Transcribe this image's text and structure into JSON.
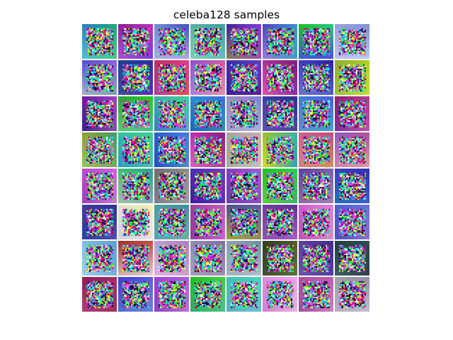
{
  "figure": {
    "title": "celeba128 samples"
  },
  "grid": {
    "rows": 8,
    "cols": 8,
    "tiles": [
      {
        "tl": "#2a7fc9",
        "tr": "#1fa37a",
        "bl": "#4fbfd8",
        "br": "#3fd07a"
      },
      {
        "tl": "#8a1f9a",
        "tr": "#c02fb8",
        "bl": "#b04fd0",
        "br": "#7a3fe0"
      },
      {
        "tl": "#6f8fd8",
        "tr": "#3f4fc0",
        "bl": "#9fb0e0",
        "br": "#b0a0f0"
      },
      {
        "tl": "#5fb0a0",
        "tr": "#3fa09f",
        "bl": "#7fd0b0",
        "br": "#5fc0c0"
      },
      {
        "tl": "#3f1fa0",
        "tr": "#7f3fd0",
        "bl": "#8a7f4f",
        "br": "#9f4fb0"
      },
      {
        "tl": "#4f3fc0",
        "tr": "#3f8fd0",
        "bl": "#8f7fe0",
        "br": "#3fa0c0"
      },
      {
        "tl": "#1fc01f",
        "tr": "#1fd07f",
        "bl": "#3f5fd0",
        "br": "#4f4fe0"
      },
      {
        "tl": "#9fa0e0",
        "tr": "#7f8fd0",
        "bl": "#c0c0f0",
        "br": "#b0d0f0"
      },
      {
        "tl": "#4f4fd0",
        "tr": "#8f5fe0",
        "bl": "#a0b0d0",
        "br": "#7fa0b0"
      },
      {
        "tl": "#1f3f8f",
        "tr": "#2f2f9f",
        "bl": "#3f4fa0",
        "br": "#5f2fbf"
      },
      {
        "tl": "#c02f5f",
        "tr": "#e03f8f",
        "bl": "#b03fa0",
        "br": "#e04f4f"
      },
      {
        "tl": "#8f4fd0",
        "tr": "#d05fa0",
        "bl": "#b07fe0",
        "br": "#e08fb0"
      },
      {
        "tl": "#3f2fb0",
        "tr": "#5f3fc0",
        "bl": "#3f1f9f",
        "br": "#5f1fa0"
      },
      {
        "tl": "#b02f9f",
        "tr": "#7f1f7f",
        "bl": "#e04fb0",
        "br": "#8f2fa0"
      },
      {
        "tl": "#3f3fc0",
        "tr": "#2f1f9f",
        "bl": "#6f6fd0",
        "br": "#4f5fd0"
      },
      {
        "tl": "#8fb02f",
        "tr": "#b0d01f",
        "bl": "#9fc03f",
        "br": "#c0e02f"
      },
      {
        "tl": "#6f1fa0",
        "tr": "#9f3fc0",
        "bl": "#3f1f8f",
        "br": "#8f4fb0"
      },
      {
        "tl": "#2fa03f",
        "tr": "#1fd01f",
        "bl": "#4fd06f",
        "br": "#3fc08f"
      },
      {
        "tl": "#3fb0a0",
        "tr": "#3fd0a0",
        "bl": "#2f7fc0",
        "br": "#5fa0d0"
      },
      {
        "tl": "#2f8fd0",
        "tr": "#3f6fe0",
        "bl": "#1f5fc0",
        "br": "#2f8fb0"
      },
      {
        "tl": "#9f8fc0",
        "tr": "#7f7fd0",
        "bl": "#a0a0d0",
        "br": "#b0b0e0"
      },
      {
        "tl": "#3f3fa0",
        "tr": "#2f2f8f",
        "bl": "#5f4fb0",
        "br": "#4f3fa0"
      },
      {
        "tl": "#3f7fd0",
        "tr": "#4f5fe0",
        "bl": "#5f8fd0",
        "br": "#3fa0d0"
      },
      {
        "tl": "#8f1f6f",
        "tr": "#b03f8f",
        "bl": "#7f2f9f",
        "br": "#c04fb0"
      },
      {
        "tl": "#8fa03f",
        "tr": "#3fa05f",
        "bl": "#9fc04f",
        "br": "#7fa06f"
      },
      {
        "tl": "#2fc0a0",
        "tr": "#3fd08f",
        "bl": "#1fa0c0",
        "br": "#4fc0b0"
      },
      {
        "tl": "#2f5fd0",
        "tr": "#3f7fe0",
        "bl": "#1f4fc0",
        "br": "#4f8fd0"
      },
      {
        "tl": "#c02fb0",
        "tr": "#8f1f7f",
        "bl": "#e05fc0",
        "br": "#b03f9f"
      },
      {
        "tl": "#b0a0a0",
        "tr": "#c0b0b0",
        "bl": "#a0b090",
        "br": "#d0c0c0"
      },
      {
        "tl": "#9fc02f",
        "tr": "#3fb0a0",
        "bl": "#d0e01f",
        "br": "#2fa0b0"
      },
      {
        "tl": "#d05f8f",
        "tr": "#c04f7f",
        "bl": "#e07f7f",
        "br": "#d08f5f"
      },
      {
        "tl": "#8f5fc0",
        "tr": "#b04f9f",
        "bl": "#d07fb0",
        "br": "#e09f9f"
      },
      {
        "tl": "#b04fd0",
        "tr": "#d05fe0",
        "bl": "#a03fc0",
        "br": "#c07fd0"
      },
      {
        "tl": "#3fc06f",
        "tr": "#2fa08f",
        "bl": "#9fc0a0",
        "br": "#7fb0b0"
      },
      {
        "tl": "#6f6f6f",
        "tr": "#8f8f8f",
        "bl": "#7f7f8f",
        "br": "#9f9fa0"
      },
      {
        "tl": "#4f2fb0",
        "tr": "#6f3fc0",
        "bl": "#3f1fa0",
        "br": "#5f2fb0"
      },
      {
        "tl": "#7f3fc0",
        "tr": "#9f5fd0",
        "bl": "#6f3fb0",
        "br": "#8f4fc0"
      },
      {
        "tl": "#1fc01f",
        "tr": "#2fd04f",
        "bl": "#5fd03f",
        "br": "#3fb06f"
      },
      {
        "tl": "#5f3f9f",
        "tr": "#7f5fb0",
        "bl": "#8f6fa0",
        "br": "#9f7fb0"
      },
      {
        "tl": "#3f3fc0",
        "tr": "#2f2fb0",
        "bl": "#1f6fc0",
        "br": "#3f5fd0"
      },
      {
        "tl": "#3f3f9f",
        "tr": "#2f2f8f",
        "bl": "#2f3fa0",
        "br": "#4f4fb0"
      },
      {
        "tl": "#e0e0d0",
        "tr": "#f0f0b0",
        "bl": "#d0d0e0",
        "br": "#f0e0f0"
      },
      {
        "tl": "#4f9fa0",
        "tr": "#3f8f9f",
        "bl": "#5fa0b0",
        "br": "#6fb0a0"
      },
      {
        "tl": "#a03fa0",
        "tr": "#c05fb0",
        "bl": "#8f3f9f",
        "br": "#d05fd0"
      },
      {
        "tl": "#4f4f8f",
        "tr": "#5f5fa0",
        "bl": "#9f9f3f",
        "br": "#8f8f5f"
      },
      {
        "tl": "#6f3f9f",
        "tr": "#5f2f8f",
        "bl": "#8f4fb0",
        "br": "#a05fc0"
      },
      {
        "tl": "#d05fd0",
        "tr": "#e07fe0",
        "bl": "#c04fb0",
        "br": "#d090d0"
      },
      {
        "tl": "#4f5fd0",
        "tr": "#6f6fe0",
        "bl": "#4f4fc0",
        "br": "#8f6fd0"
      },
      {
        "tl": "#7fbfe0",
        "tr": "#5fa0d0",
        "bl": "#9fd0f0",
        "br": "#6fb0d0"
      },
      {
        "tl": "#a02f2f",
        "tr": "#c04f3f",
        "bl": "#d0b0b0",
        "br": "#e0d0d0"
      },
      {
        "tl": "#c09fd0",
        "tr": "#b07fc0",
        "bl": "#e0b0e0",
        "br": "#d0a0d0"
      },
      {
        "tl": "#8f8fb0",
        "tr": "#7f6fa0",
        "bl": "#a0a0c0",
        "br": "#9f8fb0"
      },
      {
        "tl": "#8fa0b0",
        "tr": "#6f8f9f",
        "bl": "#a0b0c0",
        "br": "#b0c0d0"
      },
      {
        "tl": "#2f3f1f",
        "tr": "#4f5f2f",
        "bl": "#3f4f2f",
        "br": "#5f6f3f"
      },
      {
        "tl": "#5f3fa0",
        "tr": "#3f2f8f",
        "bl": "#6f4fb0",
        "br": "#4f3fa0"
      },
      {
        "tl": "#1f3f3f",
        "tr": "#2f4f4f",
        "bl": "#3f5f5f",
        "br": "#2f3f4f"
      },
      {
        "tl": "#8f1f4f",
        "tr": "#a02f6f",
        "bl": "#b03f7f",
        "br": "#9f2f5f"
      },
      {
        "tl": "#3f3fd0",
        "tr": "#5f5fe0",
        "bl": "#4f6fd0",
        "br": "#6f7fe0"
      },
      {
        "tl": "#a03fd0",
        "tr": "#b05fe0",
        "bl": "#8f3fc0",
        "br": "#c06fd0"
      },
      {
        "tl": "#1fc01f",
        "tr": "#3fd03f",
        "bl": "#2fb06f",
        "br": "#4fc07f"
      },
      {
        "tl": "#3fc0b0",
        "tr": "#4fd0c0",
        "bl": "#5fb0c0",
        "br": "#6fc0d0"
      },
      {
        "tl": "#e08fe0",
        "tr": "#f0a0f0",
        "bl": "#d07fd0",
        "br": "#f0b0e0"
      },
      {
        "tl": "#b04f9f",
        "tr": "#c05fb0",
        "bl": "#a04fa0",
        "br": "#d07fc0"
      },
      {
        "tl": "#9f9fb0",
        "tr": "#8f8fa0",
        "bl": "#b0b0c0",
        "br": "#c0c0d0"
      }
    ]
  }
}
